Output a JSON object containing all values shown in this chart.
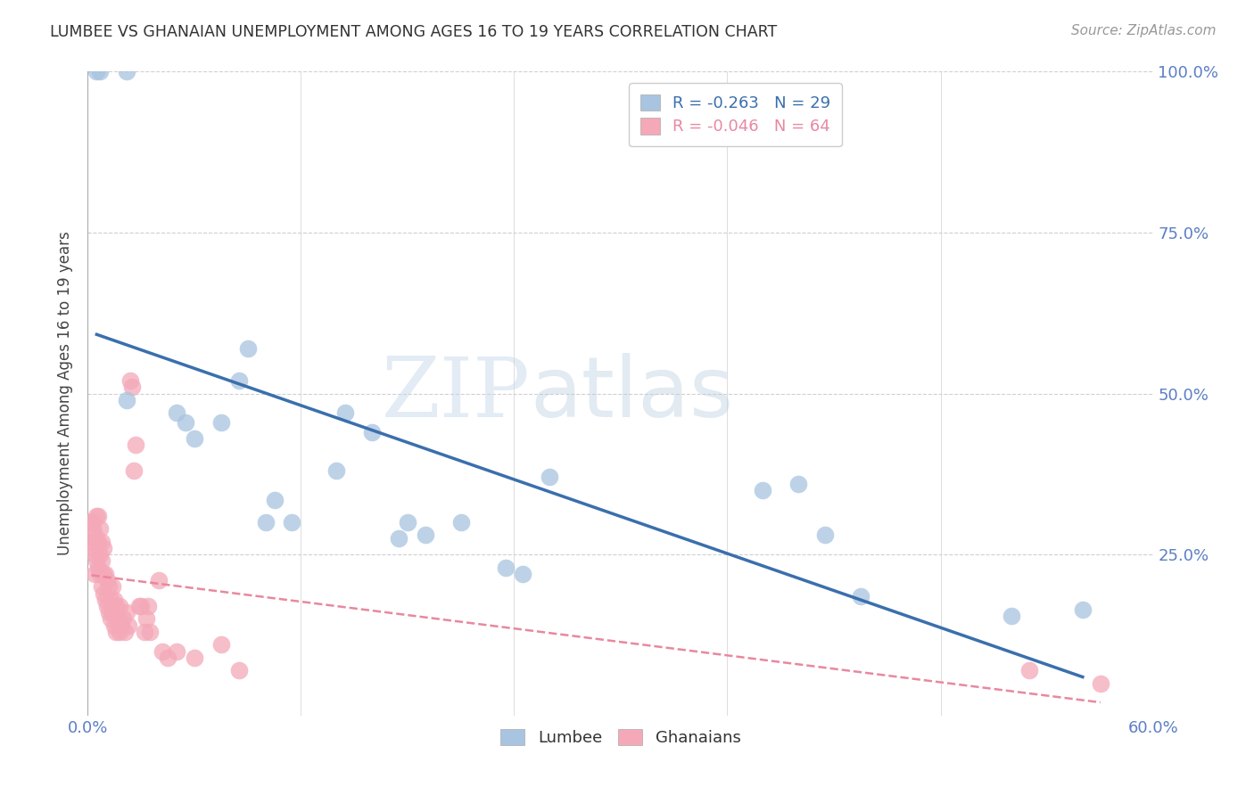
{
  "title": "LUMBEE VS GHANAIAN UNEMPLOYMENT AMONG AGES 16 TO 19 YEARS CORRELATION CHART",
  "source": "Source: ZipAtlas.com",
  "ylabel": "Unemployment Among Ages 16 to 19 years",
  "xlim": [
    0.0,
    0.6
  ],
  "ylim": [
    0.0,
    1.0
  ],
  "xticks": [
    0.0,
    0.12,
    0.24,
    0.36,
    0.48,
    0.6
  ],
  "yticks": [
    0.0,
    0.25,
    0.5,
    0.75,
    1.0
  ],
  "xtick_labels": [
    "0.0%",
    "",
    "",
    "",
    "",
    "60.0%"
  ],
  "ytick_labels_left": [
    "",
    "",
    "",
    "",
    ""
  ],
  "ytick_labels_right": [
    "",
    "25.0%",
    "50.0%",
    "75.0%",
    "100.0%"
  ],
  "lumbee_color": "#a8c4e0",
  "ghanaian_color": "#f4a8b8",
  "lumbee_line_color": "#3a6fad",
  "ghanaian_line_color": "#e888a0",
  "legend_r_lumbee": "R = -0.263",
  "legend_n_lumbee": "N = 29",
  "legend_r_ghanaian": "R = -0.046",
  "legend_n_ghanaian": "N = 64",
  "lumbee_x": [
    0.005,
    0.007,
    0.022,
    0.022,
    0.05,
    0.055,
    0.06,
    0.075,
    0.085,
    0.09,
    0.1,
    0.105,
    0.115,
    0.14,
    0.145,
    0.16,
    0.175,
    0.18,
    0.19,
    0.21,
    0.235,
    0.245,
    0.26,
    0.38,
    0.4,
    0.415,
    0.435,
    0.52,
    0.56
  ],
  "lumbee_y": [
    1.0,
    1.0,
    1.0,
    0.49,
    0.47,
    0.455,
    0.43,
    0.455,
    0.52,
    0.57,
    0.3,
    0.335,
    0.3,
    0.38,
    0.47,
    0.44,
    0.275,
    0.3,
    0.28,
    0.3,
    0.23,
    0.22,
    0.37,
    0.35,
    0.36,
    0.28,
    0.185,
    0.155,
    0.165
  ],
  "ghanaian_x": [
    0.002,
    0.002,
    0.003,
    0.003,
    0.003,
    0.004,
    0.004,
    0.004,
    0.005,
    0.005,
    0.005,
    0.006,
    0.006,
    0.006,
    0.007,
    0.007,
    0.007,
    0.008,
    0.008,
    0.008,
    0.009,
    0.009,
    0.009,
    0.01,
    0.01,
    0.011,
    0.011,
    0.012,
    0.012,
    0.013,
    0.013,
    0.014,
    0.014,
    0.015,
    0.015,
    0.016,
    0.016,
    0.017,
    0.018,
    0.018,
    0.019,
    0.02,
    0.021,
    0.022,
    0.023,
    0.024,
    0.025,
    0.026,
    0.027,
    0.029,
    0.03,
    0.032,
    0.033,
    0.034,
    0.035,
    0.04,
    0.042,
    0.045,
    0.05,
    0.06,
    0.075,
    0.085,
    0.53,
    0.57
  ],
  "ghanaian_y": [
    0.27,
    0.3,
    0.26,
    0.29,
    0.3,
    0.22,
    0.25,
    0.28,
    0.24,
    0.27,
    0.31,
    0.23,
    0.27,
    0.31,
    0.22,
    0.25,
    0.29,
    0.2,
    0.24,
    0.27,
    0.19,
    0.22,
    0.26,
    0.18,
    0.22,
    0.17,
    0.21,
    0.16,
    0.2,
    0.15,
    0.18,
    0.16,
    0.2,
    0.14,
    0.18,
    0.13,
    0.17,
    0.15,
    0.13,
    0.17,
    0.14,
    0.15,
    0.13,
    0.16,
    0.14,
    0.52,
    0.51,
    0.38,
    0.42,
    0.17,
    0.17,
    0.13,
    0.15,
    0.17,
    0.13,
    0.21,
    0.1,
    0.09,
    0.1,
    0.09,
    0.11,
    0.07,
    0.07,
    0.05
  ],
  "watermark_zip": "ZIP",
  "watermark_atlas": "atlas",
  "background_color": "#ffffff",
  "grid_color": "#d0d0d0",
  "title_color": "#333333",
  "tick_color": "#5b7fc4",
  "ylabel_color": "#444444"
}
